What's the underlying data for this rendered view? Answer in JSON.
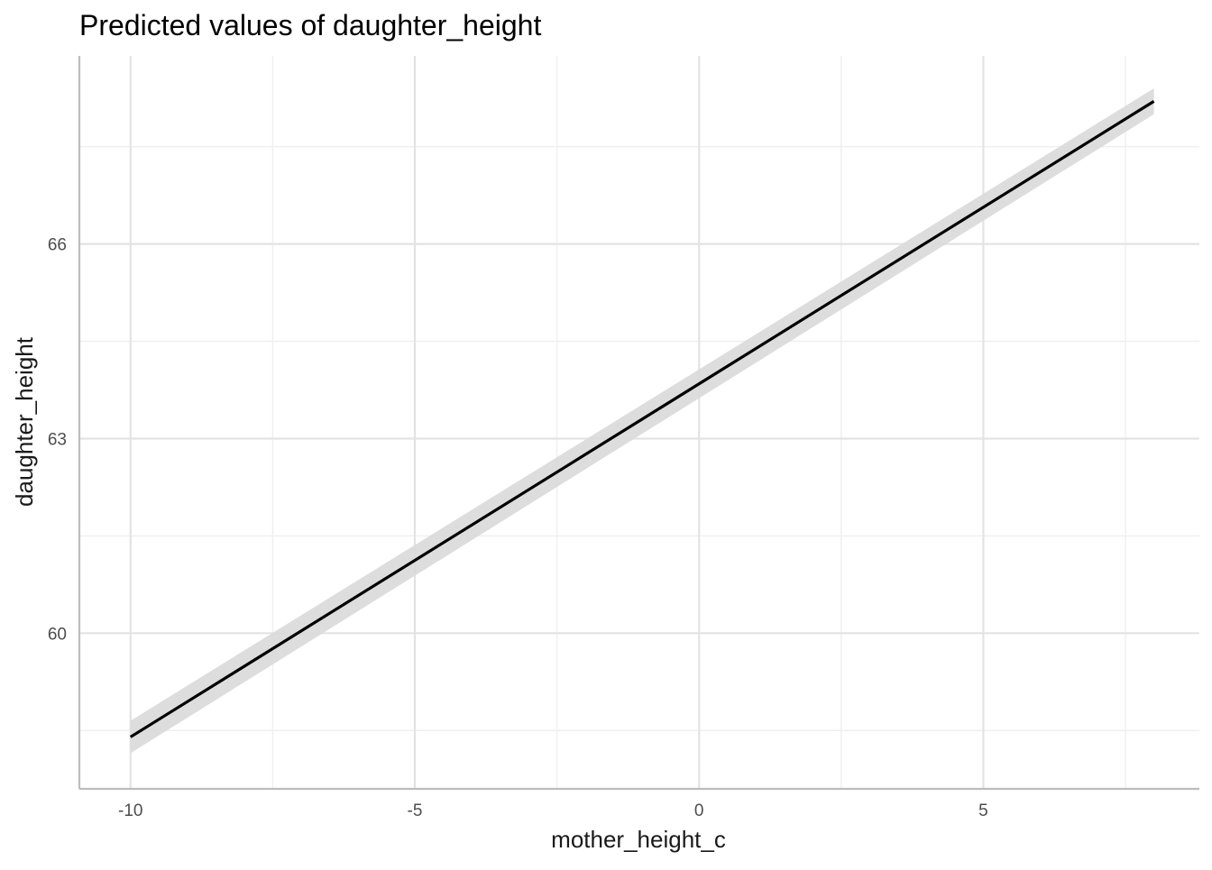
{
  "chart_data": {
    "type": "line",
    "title": "Predicted values of daughter_height",
    "xlabel": "mother_height_c",
    "ylabel": "daughter_height",
    "xlim": [
      -10.9,
      8.8
    ],
    "ylim": [
      57.6,
      68.9
    ],
    "x_ticks": [
      -10,
      -5,
      0,
      5
    ],
    "x_tick_labels": [
      "-10",
      "-5",
      "0",
      "5"
    ],
    "x_minor_ticks": [
      -7.5,
      -2.5,
      2.5,
      7.5
    ],
    "y_ticks": [
      60,
      63,
      66
    ],
    "y_tick_labels": [
      "60",
      "63",
      "66"
    ],
    "y_minor_ticks": [
      58.5,
      61.5,
      64.5,
      67.5
    ],
    "grid": true,
    "series": [
      {
        "x": [
          -10,
          8
        ],
        "y": [
          58.4,
          68.2
        ],
        "ci_lower": [
          58.15,
          68.0
        ],
        "ci_upper": [
          58.65,
          68.4
        ]
      }
    ],
    "colors": {
      "line": "#000000",
      "ribbon": "#d9d9d9"
    }
  }
}
